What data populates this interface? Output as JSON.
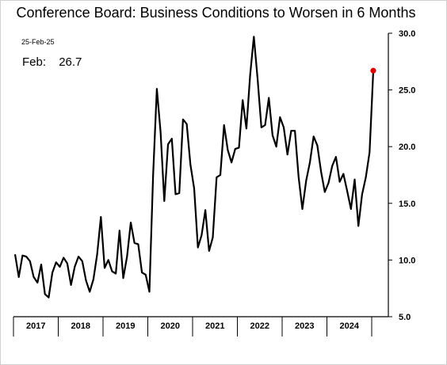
{
  "chart_data": {
    "type": "line",
    "title": "Conference Board: Business Conditions to Worsen in 6 Months",
    "date_stamp": "25-Feb-25",
    "latest": {
      "label": "Feb:",
      "value": "26.7"
    },
    "xlabel": "",
    "ylabel": "",
    "ylim": [
      5.0,
      30.0
    ],
    "y_ticks": [
      5.0,
      10.0,
      15.0,
      20.0,
      25.0,
      30.0
    ],
    "y_tick_labels": [
      "5.0",
      "10.0",
      "15.0",
      "20.0",
      "25.0",
      "30.0"
    ],
    "x_year_labels": [
      "2017",
      "2018",
      "2019",
      "2020",
      "2021",
      "2022",
      "2023",
      "2024"
    ],
    "x_start": "2017-01",
    "line_color": "#000000",
    "marker_color": "#e00000",
    "grid": false,
    "series": [
      {
        "values": [
          10.5,
          8.5,
          10.4,
          10.3,
          9.9,
          8.5,
          8.0,
          9.6,
          7.0,
          6.7,
          8.9,
          9.8,
          9.4,
          10.2,
          9.7,
          7.8,
          9.4,
          10.3,
          9.9,
          8.2,
          7.2,
          8.3,
          10.5,
          13.8,
          9.3,
          10.0,
          9.0,
          8.8,
          12.6,
          8.4,
          10.3,
          13.3,
          11.5,
          11.4,
          8.9,
          8.7,
          7.2,
          17.5,
          25.1,
          21.3,
          15.2,
          20.2,
          20.7,
          15.8,
          15.9,
          22.4,
          22.0,
          18.4,
          16.3,
          11.1,
          12.2,
          14.4,
          10.8,
          12.0,
          17.3,
          17.5,
          21.9,
          19.7,
          18.6,
          19.8,
          19.9,
          24.1,
          21.6,
          26.3,
          29.7,
          26.0,
          21.7,
          21.9,
          24.3,
          21.0,
          20.0,
          22.6,
          21.7,
          19.3,
          21.4,
          21.4,
          17.3,
          14.5,
          17.0,
          18.6,
          20.9,
          20.1,
          17.8,
          16.0,
          16.8,
          18.3,
          19.1,
          16.9,
          17.6,
          16.1,
          14.5,
          17.1,
          13.0,
          15.8,
          17.3,
          19.5,
          26.7
        ]
      }
    ]
  }
}
